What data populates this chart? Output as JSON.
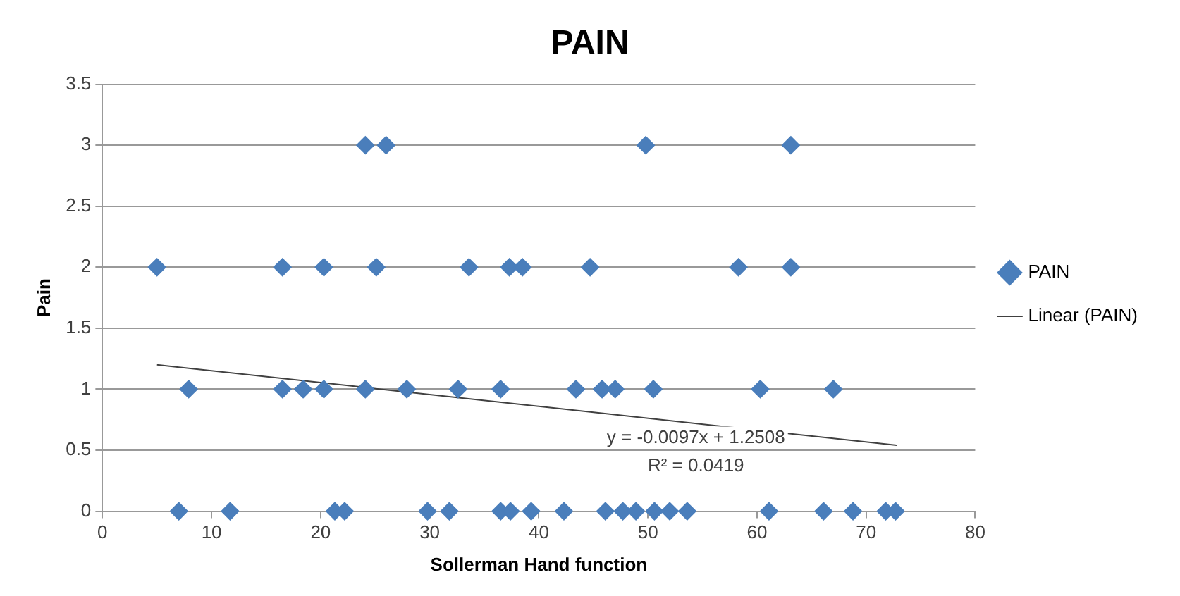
{
  "chart_data": {
    "type": "scatter",
    "title": "PAIN",
    "xlabel": "Sollerman Hand function",
    "ylabel": "Pain",
    "xlim": [
      0,
      80
    ],
    "xticks": [
      0,
      10,
      20,
      30,
      40,
      50,
      60,
      70,
      80
    ],
    "ylim": [
      0,
      3.5
    ],
    "yticks": [
      0,
      0.5,
      1,
      1.5,
      2,
      2.5,
      3,
      3.5
    ],
    "grid": "y",
    "legend": "right",
    "marker": "diamond",
    "series": [
      {
        "name": "PAIN",
        "color": "#4a7ebb",
        "x": [
          24.1,
          26.0,
          49.8,
          63.1,
          5.0,
          16.5,
          20.3,
          25.1,
          33.6,
          37.3,
          38.5,
          44.7,
          58.3,
          63.1,
          7.9,
          16.5,
          18.4,
          20.3,
          24.1,
          27.9,
          32.6,
          36.5,
          43.4,
          45.8,
          47.0,
          50.5,
          60.3,
          67.0,
          7.0,
          11.7,
          21.3,
          22.2,
          29.8,
          31.8,
          36.5,
          37.4,
          39.3,
          42.3,
          46.1,
          47.7,
          48.9,
          50.6,
          52.0,
          53.6,
          61.1,
          66.1,
          68.8,
          71.8,
          72.7
        ],
        "values": [
          3,
          3,
          3,
          3,
          2,
          2,
          2,
          2,
          2,
          2,
          2,
          2,
          2,
          2,
          1,
          1,
          1,
          1,
          1,
          1,
          1,
          1,
          1,
          1,
          1,
          1,
          1,
          1,
          0,
          0,
          0,
          0,
          0,
          0,
          0,
          0,
          0,
          0,
          0,
          0,
          0,
          0,
          0,
          0,
          0,
          0,
          0,
          0,
          0
        ]
      },
      {
        "name": "Linear (PAIN)",
        "type": "line",
        "color": "#404040",
        "marker": "none",
        "x": [
          5,
          72.8
        ],
        "values": [
          1.2,
          0.54
        ]
      }
    ],
    "annotations": [
      "y = -0.0097x + 1.2508",
      "R² = 0.0419"
    ]
  }
}
